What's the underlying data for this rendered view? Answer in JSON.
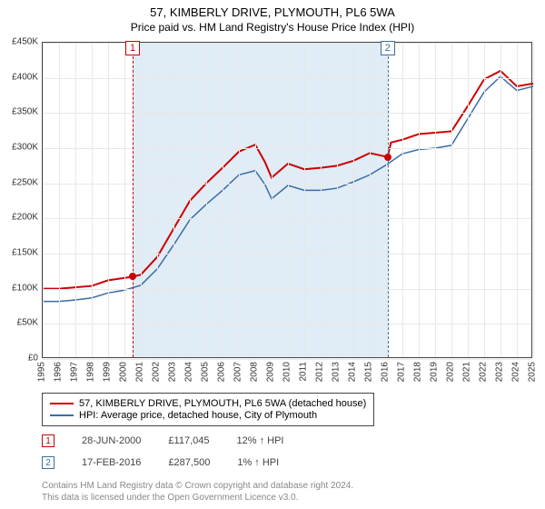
{
  "title": "57, KIMBERLY DRIVE, PLYMOUTH, PL6 5WA",
  "subtitle": "Price paid vs. HM Land Registry's House Price Index (HPI)",
  "chart": {
    "type": "line",
    "xlim": [
      1995,
      2025
    ],
    "ylim": [
      0,
      450000
    ],
    "ytick_step": 50000,
    "yticks_labels": [
      "£0",
      "£50K",
      "£100K",
      "£150K",
      "£200K",
      "£250K",
      "£300K",
      "£350K",
      "£400K",
      "£450K"
    ],
    "xticks": [
      1995,
      1996,
      1997,
      1998,
      1999,
      2000,
      2001,
      2002,
      2003,
      2004,
      2005,
      2006,
      2007,
      2008,
      2009,
      2010,
      2011,
      2012,
      2013,
      2014,
      2015,
      2016,
      2017,
      2018,
      2019,
      2020,
      2021,
      2022,
      2023,
      2024,
      2025
    ],
    "background_color": "#ffffff",
    "grid_color": "#e8e8e8",
    "axis_color": "#444444",
    "shade_color": "#e0ecf6",
    "series": [
      {
        "id": "price_paid",
        "label": "57, KIMBERLY DRIVE, PLYMOUTH, PL6 5WA (detached house)",
        "color": "#cc0000",
        "width": 2,
        "points": [
          [
            1995,
            100000
          ],
          [
            1996,
            100000
          ],
          [
            1997,
            102000
          ],
          [
            1998,
            104000
          ],
          [
            1999,
            112000
          ],
          [
            2000.5,
            117045
          ],
          [
            2001,
            120000
          ],
          [
            2002,
            145000
          ],
          [
            2003,
            185000
          ],
          [
            2004,
            225000
          ],
          [
            2005,
            250000
          ],
          [
            2006,
            272000
          ],
          [
            2007,
            295000
          ],
          [
            2008,
            305000
          ],
          [
            2008.6,
            280000
          ],
          [
            2009,
            258000
          ],
          [
            2010,
            278000
          ],
          [
            2011,
            270000
          ],
          [
            2012,
            272000
          ],
          [
            2013,
            275000
          ],
          [
            2014,
            282000
          ],
          [
            2015,
            293000
          ],
          [
            2016.1,
            287500
          ],
          [
            2016.3,
            308000
          ],
          [
            2017,
            312000
          ],
          [
            2018,
            320000
          ],
          [
            2019,
            322000
          ],
          [
            2020,
            324000
          ],
          [
            2021,
            360000
          ],
          [
            2022,
            398000
          ],
          [
            2023,
            410000
          ],
          [
            2024,
            388000
          ],
          [
            2025,
            392000
          ]
        ]
      },
      {
        "id": "hpi",
        "label": "HPI: Average price, detached house, City of Plymouth",
        "color": "#3a6ea5",
        "width": 1.5,
        "points": [
          [
            1995,
            82000
          ],
          [
            1996,
            82000
          ],
          [
            1997,
            84000
          ],
          [
            1998,
            87000
          ],
          [
            1999,
            94000
          ],
          [
            2000,
            98000
          ],
          [
            2001,
            105000
          ],
          [
            2002,
            128000
          ],
          [
            2003,
            162000
          ],
          [
            2004,
            198000
          ],
          [
            2005,
            220000
          ],
          [
            2006,
            240000
          ],
          [
            2007,
            262000
          ],
          [
            2008,
            268000
          ],
          [
            2008.6,
            248000
          ],
          [
            2009,
            228000
          ],
          [
            2010,
            247000
          ],
          [
            2011,
            240000
          ],
          [
            2012,
            240000
          ],
          [
            2013,
            243000
          ],
          [
            2014,
            252000
          ],
          [
            2015,
            262000
          ],
          [
            2016,
            276000
          ],
          [
            2017,
            292000
          ],
          [
            2018,
            298000
          ],
          [
            2019,
            300000
          ],
          [
            2020,
            304000
          ],
          [
            2021,
            342000
          ],
          [
            2022,
            380000
          ],
          [
            2023,
            402000
          ],
          [
            2024,
            382000
          ],
          [
            2025,
            388000
          ]
        ]
      }
    ],
    "shade_range": [
      2000.5,
      2016.1
    ],
    "events": [
      {
        "n": "1",
        "x": 2000.5,
        "color": "#cc0000"
      },
      {
        "n": "2",
        "x": 2016.1,
        "color": "#3a6ea5"
      }
    ],
    "markers": [
      {
        "x": 2000.5,
        "y": 117045,
        "color": "#cc0000"
      },
      {
        "x": 2016.1,
        "y": 287500,
        "color": "#cc0000"
      }
    ]
  },
  "transactions": [
    {
      "n": "1",
      "box_color": "#cc0000",
      "date": "28-JUN-2000",
      "price": "£117,045",
      "delta": "12% ↑ HPI"
    },
    {
      "n": "2",
      "box_color": "#3a6ea5",
      "date": "17-FEB-2016",
      "price": "£287,500",
      "delta": "1% ↑ HPI"
    }
  ],
  "footer_line1": "Contains HM Land Registry data © Crown copyright and database right 2024.",
  "footer_line2": "This data is licensed under the Open Government Licence v3.0."
}
